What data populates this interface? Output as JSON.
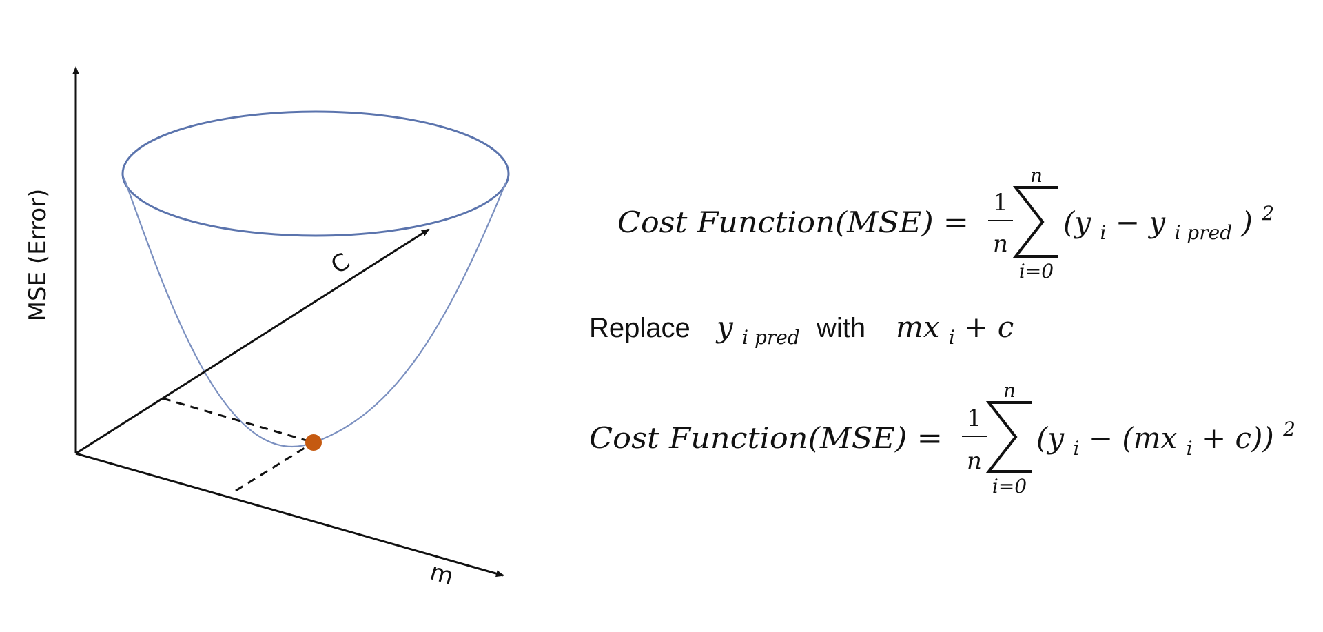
{
  "diagram": {
    "y_axis_label": "MSE (Error)",
    "c_axis_label": "C",
    "m_axis_label": "m",
    "colors": {
      "bowl": "#5b74ad",
      "minimum": "#c55a11",
      "axes": "#111111"
    }
  },
  "equations": {
    "eq1": {
      "lhs": "Cost Function(MSE) =",
      "frac_num": "1",
      "frac_den": "n",
      "sum_upper": "n",
      "sum_lower": "i=0",
      "term_open": "(y",
      "term_sub": "i",
      "term_minus": " − y",
      "term_sub2": "i pred",
      "term_close": ")",
      "power": "2"
    },
    "replace": {
      "word1": "Replace",
      "var": "y",
      "var_sub": "i pred",
      "word2": "with",
      "expr": "mx",
      "expr_sub": "i",
      "expr_tail": " + c"
    },
    "eq2": {
      "lhs": "Cost Function(MSE) =",
      "frac_num": "1",
      "frac_den": "n",
      "sum_upper": "n",
      "sum_lower": "i=0",
      "term_open": "(y",
      "term_sub": "i",
      "term_mid": " − (mx",
      "term_sub2": "i",
      "term_close": " + c))",
      "power": "2"
    }
  }
}
